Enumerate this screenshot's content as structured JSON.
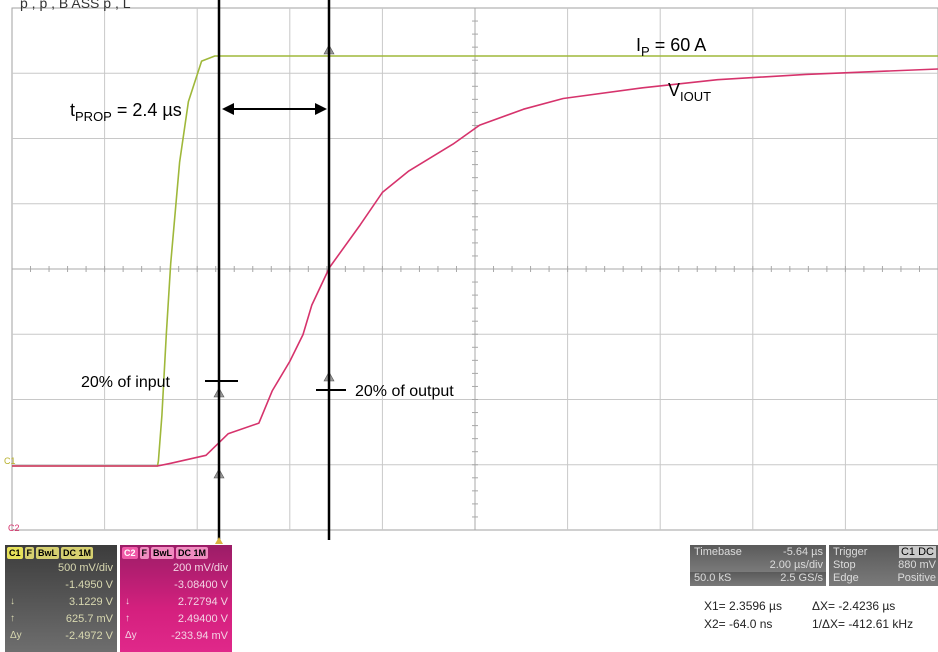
{
  "chart_data": {
    "type": "line",
    "title": "",
    "xlabel": "",
    "ylabel": "",
    "series": [
      {
        "name": "IP = 60 A",
        "color": "#9fb83a",
        "x": [
          -2.0,
          1.3,
          1.32,
          1.4,
          1.5,
          1.6,
          1.8,
          2.0,
          2.3,
          2.6,
          3.0,
          4.0,
          8.0,
          14.0,
          19.0
        ],
        "y": [
          0.0,
          0.0,
          0.05,
          0.5,
          1.3,
          2.0,
          3.0,
          3.6,
          4.0,
          4.05,
          4.05,
          4.05,
          4.05,
          4.05,
          4.05
        ]
      },
      {
        "name": "VIOUT",
        "color": "#d6336c",
        "x": [
          -2.0,
          1.3,
          1.6,
          2.4,
          2.9,
          3.6,
          3.9,
          4.3,
          4.6,
          4.8,
          5.2,
          5.9,
          6.4,
          7.0,
          8.0,
          8.6,
          9.6,
          10.5,
          12.3,
          14.0,
          16.0,
          17.5,
          19.0
        ],
        "y": [
          0.0,
          0.0,
          0.05,
          0.2,
          0.6,
          0.8,
          1.4,
          1.95,
          2.45,
          3.0,
          3.7,
          4.5,
          5.1,
          5.5,
          6.0,
          6.35,
          6.65,
          6.85,
          7.05,
          7.2,
          7.3,
          7.35,
          7.4
        ]
      }
    ],
    "annotations": [
      {
        "text": "tPROP = 2.4 µs",
        "main": "t",
        "sub": "PROP",
        "rest": " = 2.4 µs"
      },
      {
        "text": "IP = 60 A",
        "main": "I",
        "sub": "P",
        "rest": " = 60 A"
      },
      {
        "text": "VIOUT",
        "main": "V",
        "sub": "IOUT",
        "rest": ""
      },
      {
        "text": "20% of input"
      },
      {
        "text": "20% of output"
      }
    ],
    "grid": true,
    "xlim": [
      -2.0,
      19.0
    ],
    "y_per_div": "500 mV/div (C1), 200 mV/div (C2)"
  },
  "top_caption": "p   ,                                         p ,   B  ASS        p ,   L",
  "channel_markers": {
    "c1": "C1",
    "c2": "C2"
  },
  "ch1": {
    "tag": "C1",
    "flags": [
      "F",
      "BwL",
      "DC 1M"
    ],
    "rows": [
      "500 mV/div",
      "-1.4950 V",
      "3.1229 V",
      "625.7 mV",
      "-2.4972 V"
    ],
    "syms": [
      "",
      "",
      "↓",
      "↑",
      "Δy"
    ]
  },
  "ch2": {
    "tag": "C2",
    "flags": [
      "F",
      "BwL",
      "DC 1M"
    ],
    "rows": [
      "200 mV/div",
      "-3.08400 V",
      "2.72794 V",
      "2.49400 V",
      "-233.94 mV"
    ],
    "syms": [
      "",
      "",
      "↓",
      "↑",
      "Δy"
    ]
  },
  "timebase": {
    "label": "Timebase",
    "offset": "-5.64 µs",
    "div": "2.00 µs/div",
    "samples": "50.0 kS",
    "rate": "2.5 GS/s"
  },
  "trigger": {
    "label": "Trigger",
    "tag": "C1 DC",
    "mode": "Stop",
    "level": "880 mV",
    "type": "Edge",
    "slope": "Positive"
  },
  "cursors": {
    "x1": "X1=  2.3596 µs",
    "dx": "ΔX=  -2.4236 µs",
    "x2": "X2=   -64.0 ns",
    "inv": "1/ΔX=  -412.61 kHz"
  },
  "colors": {
    "grid": "#c8c8c8",
    "frame": "#a0a0a0",
    "input": "#9fb83a",
    "output": "#d6336c",
    "bg": "#ffffff"
  }
}
